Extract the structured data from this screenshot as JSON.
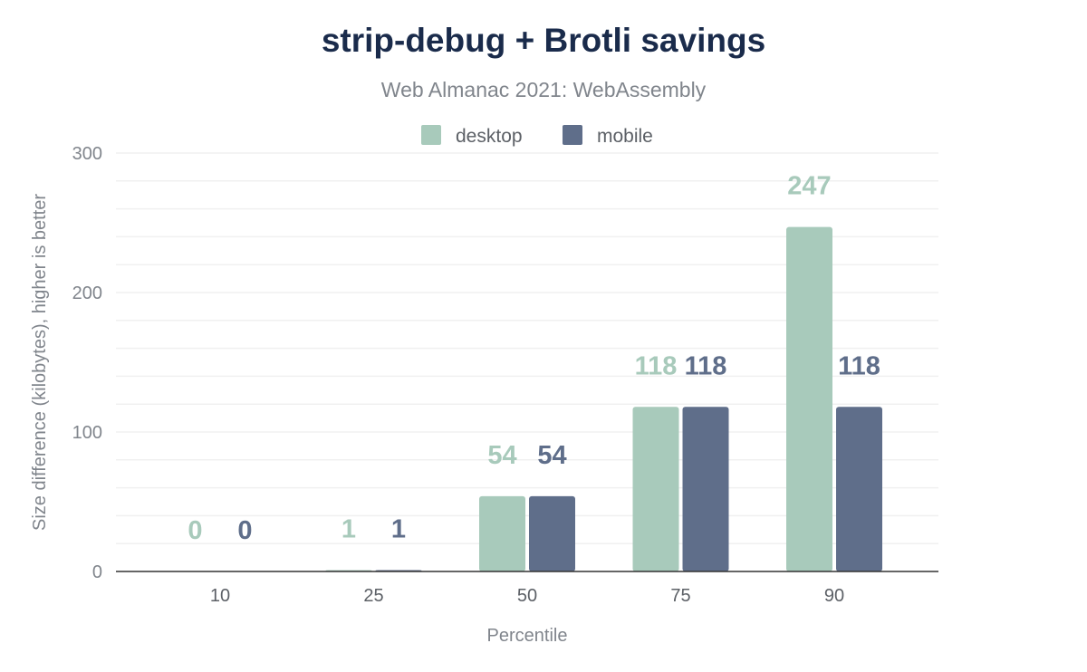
{
  "chart_data": {
    "type": "bar",
    "title": "strip-debug + Brotli savings",
    "subtitle": "Web Almanac 2021: WebAssembly",
    "xlabel": "Percentile",
    "ylabel": "Size difference (kilobytes), higher is better",
    "categories": [
      "10",
      "25",
      "50",
      "75",
      "90"
    ],
    "series": [
      {
        "name": "desktop",
        "color": "#a8cabb",
        "values": [
          0,
          1,
          54,
          118,
          247
        ]
      },
      {
        "name": "mobile",
        "color": "#5f6e8a",
        "values": [
          0,
          1,
          54,
          118,
          118
        ]
      }
    ],
    "ylim": [
      0,
      300
    ],
    "yticks": [
      0,
      100,
      200,
      300
    ],
    "grid": true,
    "legend": "top-center",
    "data_labels": true
  }
}
